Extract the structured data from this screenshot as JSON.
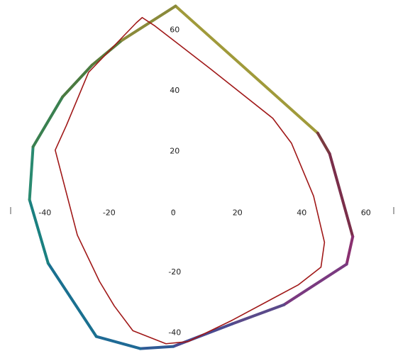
{
  "chart_data": {
    "type": "line",
    "closed": true,
    "xlim": [
      -54,
      70
    ],
    "ylim": [
      -46,
      70
    ],
    "xticks": [
      -40,
      -20,
      0,
      20,
      40,
      60
    ],
    "yticks": [
      -40,
      -20,
      20,
      40,
      60
    ],
    "series": [
      {
        "width": 4,
        "x": [
          0.7,
          45,
          48.7,
          55.9,
          54,
          34.5,
          18.4,
          0,
          -10.3,
          -24,
          -39,
          -44.8,
          -43.7,
          -34.5,
          -25.3,
          -16
        ],
        "values": [
          68,
          26,
          19.2,
          -8.2,
          -17.3,
          -30.7,
          -37,
          -44.5,
          -45.2,
          -41.2,
          -17,
          4,
          21.5,
          38,
          48.5,
          56.7
        ],
        "colors": [
          "#a09a3a",
          "#7a3a40",
          "#7a2e4a",
          "#8a3070",
          "#7a3a80",
          "#5a4a8a",
          "#4a4a90",
          "#2f5a95",
          "#1f6a95",
          "#1a7090",
          "#1a8080",
          "#2a8a70",
          "#3a8050",
          "#4a7a40",
          "#5a7a3a",
          "#8a8a3a"
        ]
      },
      {
        "width": 1.6,
        "color": "#a01818",
        "x": [
          -9.7,
          -5.7,
          11.5,
          31,
          36.8,
          43.7,
          47.1,
          46,
          39,
          18.4,
          4.6,
          -2.3,
          -12.6,
          -18.4,
          -23,
          -29.9,
          -36.8,
          -33.3,
          -26.4,
          -11.5
        ],
        "values": [
          64.2,
          61.4,
          47.3,
          30.9,
          22.7,
          5.2,
          -10.1,
          -18.3,
          -24.1,
          -35.8,
          -42.9,
          -43.6,
          -39.3,
          -31.1,
          -23,
          -7.7,
          20.4,
          28.6,
          46.1,
          62.5
        ]
      }
    ]
  }
}
